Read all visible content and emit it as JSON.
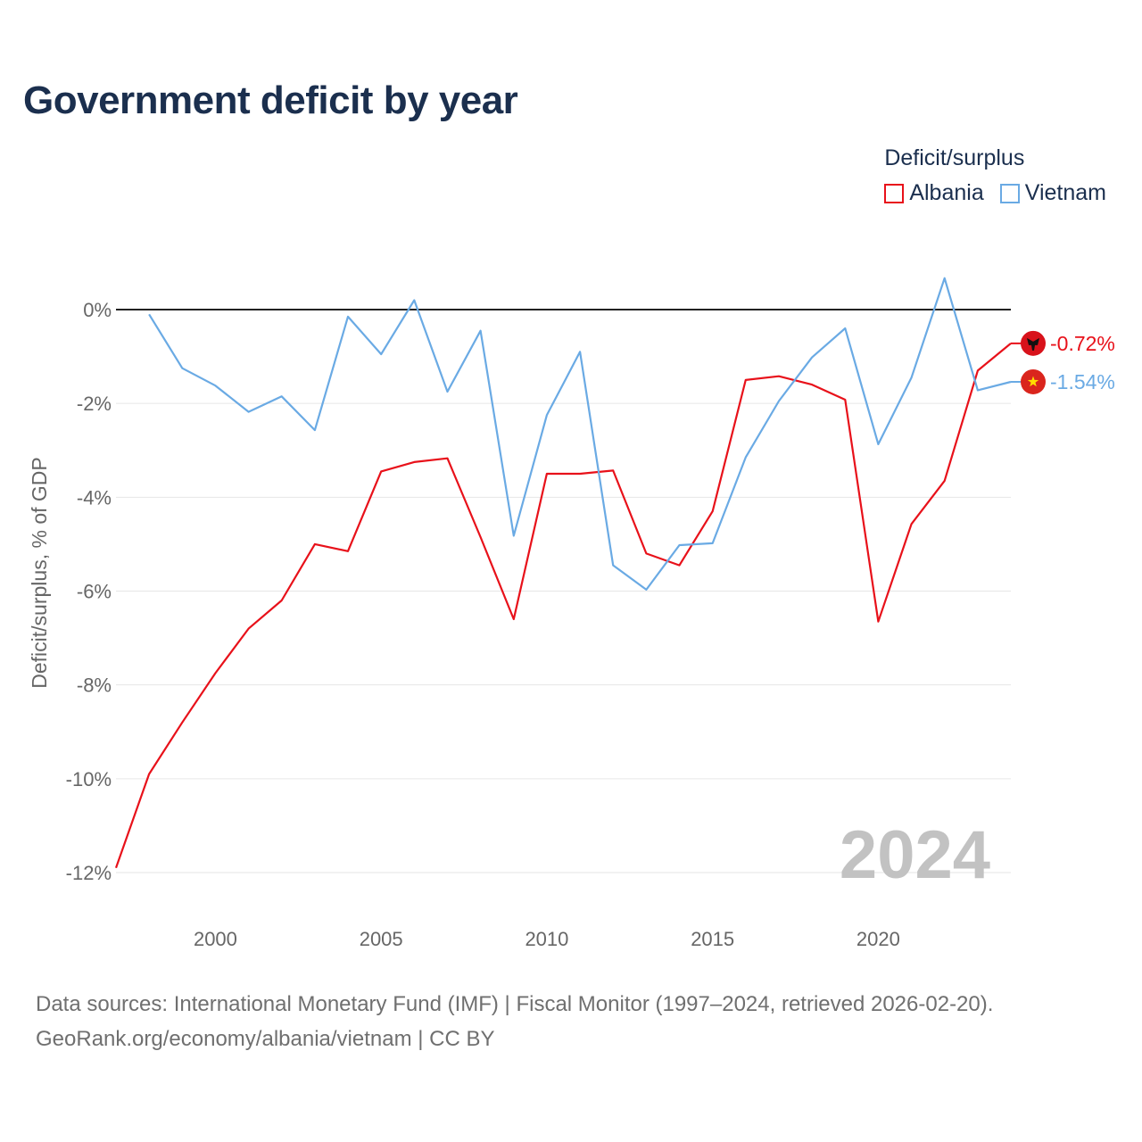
{
  "title": "Government deficit by year",
  "legend": {
    "title": "Deficit/surplus",
    "items": [
      {
        "name": "Albania",
        "color": "#e8111a"
      },
      {
        "name": "Vietnam",
        "color": "#6aaae4"
      }
    ]
  },
  "year_label": "2024",
  "footer": {
    "line1": "Data sources: International Monetary Fund (IMF) | Fiscal Monitor (1997–2024, retrieved 2026-02-20).",
    "line2": "GeoRank.org/economy/albania/vietnam | CC BY"
  },
  "chart_data": {
    "type": "line",
    "title": "Government deficit by year",
    "xlabel": "",
    "ylabel": "Deficit/surplus, % of GDP",
    "xlim": [
      1997,
      2024
    ],
    "ylim": [
      -12,
      0
    ],
    "x_ticks": [
      2000,
      2005,
      2010,
      2015,
      2020
    ],
    "y_ticks": [
      0,
      -2,
      -4,
      -6,
      -8,
      -10,
      -12
    ],
    "y_tick_labels": [
      "0%",
      "-2%",
      "-4%",
      "-6%",
      "-8%",
      "-10%",
      "-12%"
    ],
    "reference_line": 0,
    "series": [
      {
        "name": "Albania",
        "color": "#e8111a",
        "end_label": "-0.72%",
        "flag": "albania",
        "points": [
          [
            1997,
            -11.9
          ],
          [
            1998,
            -9.9
          ],
          [
            1999,
            -8.8
          ],
          [
            2000,
            -7.75
          ],
          [
            2001,
            -6.8
          ],
          [
            2002,
            -6.2
          ],
          [
            2003,
            -5.0
          ],
          [
            2004,
            -5.15
          ],
          [
            2005,
            -3.45
          ],
          [
            2006,
            -3.25
          ],
          [
            2007,
            -3.17
          ],
          [
            2008,
            -4.85
          ],
          [
            2009,
            -6.6
          ],
          [
            2010,
            -3.5
          ],
          [
            2011,
            -3.5
          ],
          [
            2012,
            -3.43
          ],
          [
            2013,
            -5.2
          ],
          [
            2014,
            -5.45
          ],
          [
            2015,
            -4.3
          ],
          [
            2016,
            -1.5
          ],
          [
            2017,
            -1.42
          ],
          [
            2018,
            -1.6
          ],
          [
            2019,
            -1.92
          ],
          [
            2020,
            -6.65
          ],
          [
            2021,
            -4.57
          ],
          [
            2022,
            -3.65
          ],
          [
            2023,
            -1.3
          ],
          [
            2024,
            -0.72
          ]
        ]
      },
      {
        "name": "Vietnam",
        "color": "#6aaae4",
        "end_label": "-1.54%",
        "flag": "vietnam",
        "points": [
          [
            1998,
            -0.1
          ],
          [
            1999,
            -1.25
          ],
          [
            2000,
            -1.62
          ],
          [
            2001,
            -2.18
          ],
          [
            2002,
            -1.85
          ],
          [
            2003,
            -2.57
          ],
          [
            2004,
            -0.15
          ],
          [
            2005,
            -0.95
          ],
          [
            2006,
            0.2
          ],
          [
            2007,
            -1.75
          ],
          [
            2008,
            -0.45
          ],
          [
            2009,
            -4.82
          ],
          [
            2010,
            -2.25
          ],
          [
            2011,
            -0.9
          ],
          [
            2012,
            -5.45
          ],
          [
            2013,
            -5.97
          ],
          [
            2014,
            -5.02
          ],
          [
            2015,
            -4.98
          ],
          [
            2016,
            -3.15
          ],
          [
            2017,
            -1.95
          ],
          [
            2018,
            -1.02
          ],
          [
            2019,
            -0.4
          ],
          [
            2020,
            -2.87
          ],
          [
            2021,
            -1.45
          ],
          [
            2022,
            0.67
          ],
          [
            2023,
            -1.72
          ],
          [
            2024,
            -1.54
          ]
        ]
      }
    ]
  }
}
